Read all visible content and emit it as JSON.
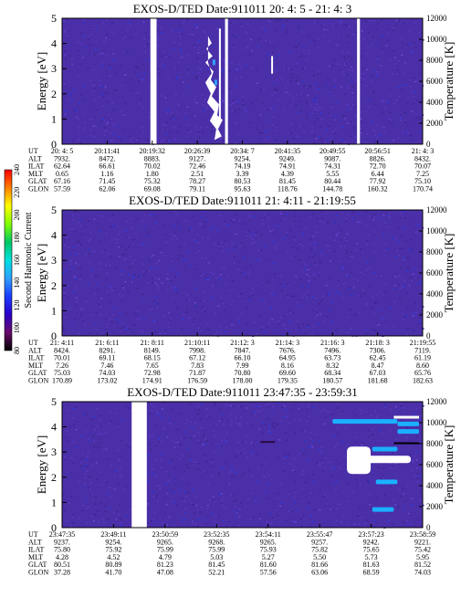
{
  "colorbar": {
    "label": "Second Harmonic Current",
    "ticks": [
      "240",
      "220",
      "200",
      "180",
      "160",
      "140",
      "120",
      "100",
      "80"
    ],
    "colors": [
      "#000000",
      "#6a0a6a",
      "#2a00c8",
      "#1a3cff",
      "#2fa0ff",
      "#00e0e0",
      "#00c864",
      "#80ff00",
      "#ffff00",
      "#ff8000",
      "#ff0000"
    ]
  },
  "background_color": "#4b2fa8",
  "chart_data": [
    {
      "type": "heatmap",
      "title": "EXOS-D/TED   Date:911011  20: 4: 5 - 21: 4: 3",
      "ylabel": "Energy [eV]",
      "ylabel_right": "Temperature [K]",
      "ylim": [
        0,
        5
      ],
      "yticks": [
        "0",
        "1",
        "2",
        "3",
        "4",
        "5"
      ],
      "ylim_right": [
        0,
        12000
      ],
      "yticks_right": [
        "0",
        "2000",
        "4000",
        "6000",
        "8000",
        "10000",
        "12000"
      ],
      "gaps_fraction": [
        [
          0.245,
          0.262
        ],
        [
          0.452,
          0.46
        ],
        [
          0.818,
          0.826
        ]
      ],
      "features": [
        {
          "x": [
            0.385,
            0.455
          ],
          "y": [
            0.8,
            4.3
          ],
          "kind": "white-jagged-cluster"
        },
        {
          "x": [
            0.58,
            0.585
          ],
          "y": [
            2.8,
            3.5
          ],
          "kind": "white-line"
        }
      ],
      "table": {
        "row_labels": [
          "UT",
          "ALT",
          "ILAT",
          "MLT",
          "GLAT",
          "GLON"
        ],
        "columns": [
          [
            "20: 4: 5",
            "7932.",
            "62.64",
            "0.65",
            "67.16",
            "57.59"
          ],
          [
            "20:11:41",
            "8472.",
            "66.61",
            "1.16",
            "71.45",
            "62.06"
          ],
          [
            "20:19:32",
            "8883.",
            "70.02",
            "1.80",
            "75.32",
            "69.08"
          ],
          [
            "20:26:39",
            "9127.",
            "72.46",
            "2.51",
            "78.27",
            "79.11"
          ],
          [
            "20:34: 7",
            "9254.",
            "74.19",
            "3.39",
            "80.53",
            "95.63"
          ],
          [
            "20:41:35",
            "9249.",
            "74.91",
            "4.39",
            "81.45",
            "118.76"
          ],
          [
            "20:49:55",
            "9087.",
            "74.31",
            "5.55",
            "80.44",
            "144.78"
          ],
          [
            "20:56:51",
            "8826.",
            "72.70",
            "6.44",
            "77.92",
            "160.32"
          ],
          [
            "21: 4: 3",
            "8432.",
            "70.07",
            "7.25",
            "75.10",
            "170.74"
          ]
        ]
      }
    },
    {
      "type": "heatmap",
      "title": "EXOS-D/TED   Date:911011  21: 4:11 - 21:19:55",
      "ylabel": "Energy [eV]",
      "ylabel_right": "Temperature [K]",
      "ylim": [
        0,
        5
      ],
      "yticks": [
        "0",
        "1",
        "2",
        "3",
        "4",
        "5"
      ],
      "ylim_right": [
        0,
        12000
      ],
      "yticks_right": [
        "0",
        "2000",
        "4000",
        "6000",
        "8000",
        "10000",
        "12000"
      ],
      "gaps_fraction": [],
      "features": [],
      "table": {
        "row_labels": [
          "UT",
          "ALT",
          "ILAT",
          "MLT",
          "GLAT",
          "GLON"
        ],
        "columns": [
          [
            "21: 4:11",
            "8424.",
            "70.01",
            "7.26",
            "75.03",
            "170.89"
          ],
          [
            "21: 6:11",
            "8291.",
            "69.11",
            "7.46",
            "74.03",
            "173.02"
          ],
          [
            "21: 8:11",
            "8149.",
            "68.15",
            "7.65",
            "72.98",
            "174.91"
          ],
          [
            "21:10:11",
            "7998.",
            "67.12",
            "7.83",
            "71.87",
            "176.59"
          ],
          [
            "21:12: 3",
            "7847.",
            "66.10",
            "7.99",
            "70.80",
            "178.00"
          ],
          [
            "21:14: 3",
            "7676.",
            "64.95",
            "8.16",
            "69.60",
            "179.35"
          ],
          [
            "21:16: 3",
            "7496.",
            "63.73",
            "8.32",
            "68.34",
            "180.57"
          ],
          [
            "21:18: 3",
            "7306.",
            "62.45",
            "8.47",
            "67.03",
            "181.68"
          ],
          [
            "21:19:55",
            "7119.",
            "61.19",
            "8.60",
            "65.76",
            "182.63"
          ]
        ]
      }
    },
    {
      "type": "heatmap",
      "title": "EXOS-D/TED   Date:911011  23:47:35 - 23:59:31",
      "ylabel": "Energy [eV]",
      "ylabel_right": "Temperature [K]",
      "ylim": [
        0,
        5
      ],
      "yticks": [
        "0",
        "1",
        "2",
        "3",
        "4",
        "5"
      ],
      "ylim_right": [
        0,
        12000
      ],
      "yticks_right": [
        "0",
        "2000",
        "4000",
        "6000",
        "8000",
        "10000",
        "12000"
      ],
      "gaps_fraction": [
        [
          0.193,
          0.235
        ]
      ],
      "features": [
        {
          "x": [
            0.79,
            0.98
          ],
          "y": [
            0.5,
            4.5
          ],
          "kind": "white-comb-and-bright-bands"
        }
      ],
      "table": {
        "row_labels": [
          "UT",
          "ALT",
          "ILAT",
          "MLT",
          "GLAT",
          "GLON"
        ],
        "columns": [
          [
            "23:47:35",
            "9237.",
            "75.80",
            "4.28",
            "80.51",
            "37.28"
          ],
          [
            "23:49:11",
            "9254.",
            "75.92",
            "4.52",
            "80.89",
            "41.70"
          ],
          [
            "23:50:59",
            "9265.",
            "75.99",
            "4.79",
            "81.23",
            "47.08"
          ],
          [
            "23:52:35",
            "9268.",
            "75.99",
            "5.03",
            "81.45",
            "52.21"
          ],
          [
            "23:54:11",
            "9265.",
            "75.93",
            "5.27",
            "81.60",
            "57.56"
          ],
          [
            "23:55:47",
            "9257.",
            "75.82",
            "5.50",
            "81.66",
            "63.06"
          ],
          [
            "23:57:23",
            "9242.",
            "75.65",
            "5.73",
            "81.63",
            "68.59"
          ],
          [
            "23:58:59",
            "9221.",
            "75.42",
            "5.95",
            "81.52",
            "74.03"
          ]
        ]
      }
    }
  ]
}
